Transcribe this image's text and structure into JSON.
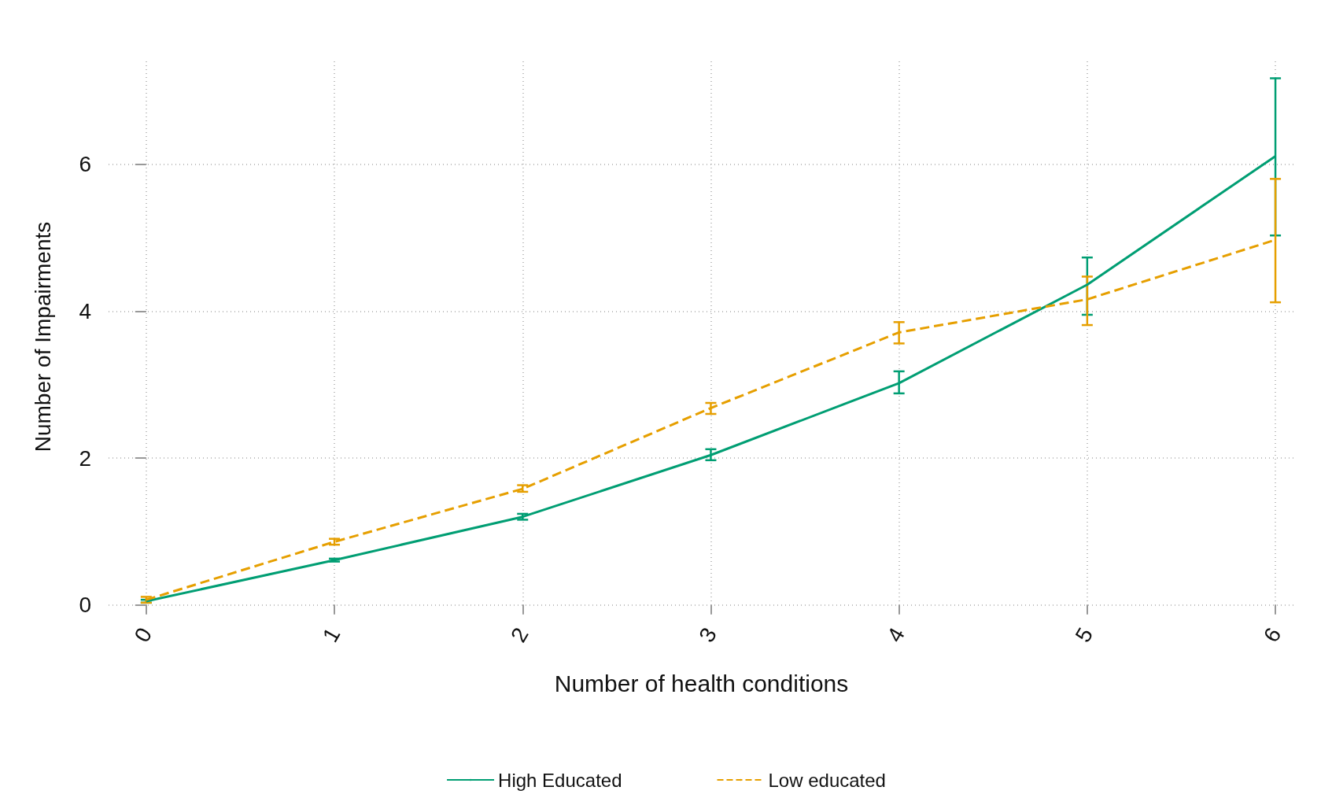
{
  "chart_data": {
    "type": "line",
    "xlabel": "Number of health conditions",
    "ylabel": "Number of Impairments",
    "x": [
      0,
      1,
      2,
      3,
      4,
      5,
      6
    ],
    "series": [
      {
        "name": "High Educated",
        "color": "#009e73",
        "line_style": "solid",
        "values": [
          0.05,
          0.61,
          1.2,
          2.04,
          3.02,
          4.36,
          6.11
        ],
        "errors": [
          [
            0.03,
            0.07
          ],
          [
            0.59,
            0.63
          ],
          [
            1.16,
            1.24
          ],
          [
            1.97,
            2.12
          ],
          [
            2.88,
            3.18
          ],
          [
            3.95,
            4.73
          ],
          [
            5.03,
            7.17
          ]
        ]
      },
      {
        "name": "Low educated",
        "color": "#e69f00",
        "line_style": "dashed",
        "values": [
          0.07,
          0.86,
          1.58,
          2.68,
          3.71,
          4.16,
          4.97
        ],
        "errors": [
          [
            0.03,
            0.11
          ],
          [
            0.82,
            0.9
          ],
          [
            1.54,
            1.63
          ],
          [
            2.6,
            2.75
          ],
          [
            3.56,
            3.85
          ],
          [
            3.81,
            4.47
          ],
          [
            4.12,
            5.8
          ]
        ]
      }
    ],
    "xlim": [
      -0.2,
      6.1
    ],
    "xticks": [
      0,
      1,
      2,
      3,
      4,
      5,
      6
    ],
    "ylim": [
      -0.1,
      7.4
    ],
    "yticks": [
      0,
      2,
      4,
      6
    ],
    "grid": true,
    "legend": "bottom",
    "marker": "none"
  }
}
